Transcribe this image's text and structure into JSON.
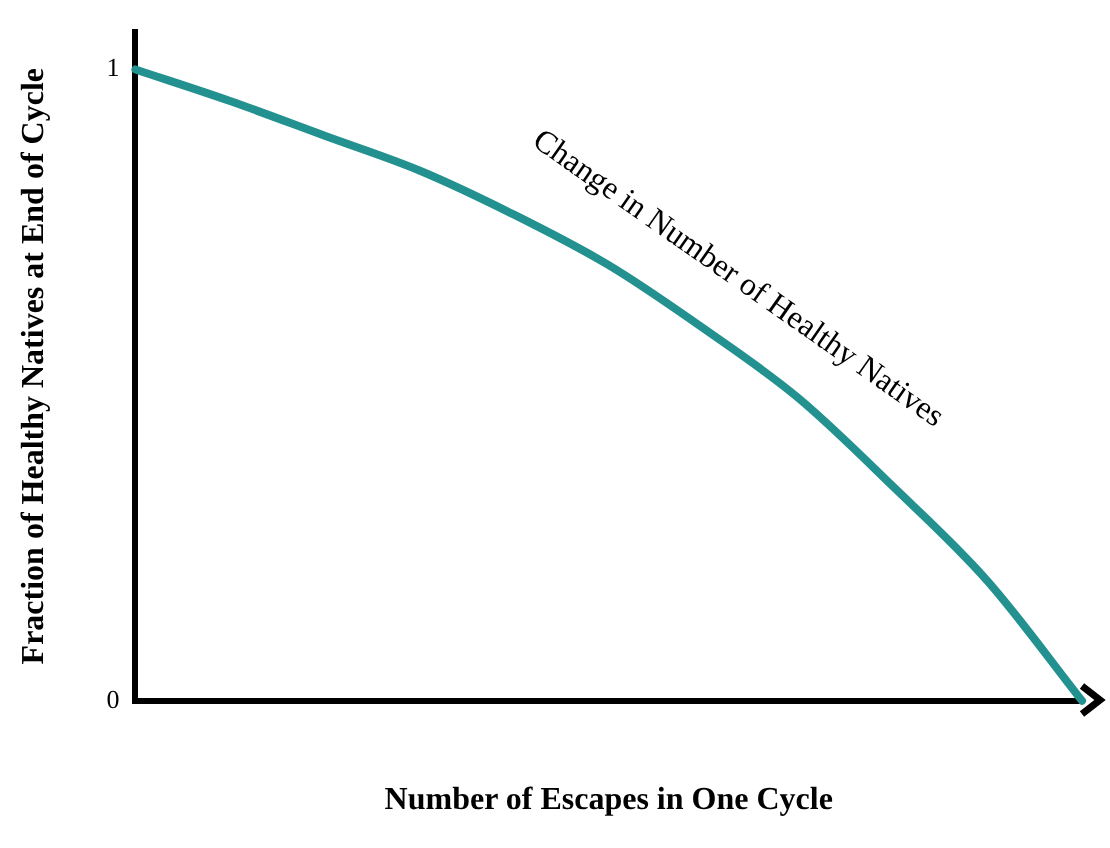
{
  "chart_data": {
    "type": "line",
    "xlabel": "Number of Escapes in One Cycle",
    "ylabel": "Fraction of Healthy Natives at End of Cycle",
    "categories": [
      null,
      null,
      null,
      null,
      null,
      null,
      null,
      null,
      null,
      null,
      null
    ],
    "series": [
      {
        "name": "Change in Number of Healthy Natives",
        "color": "#23918f",
        "values": [
          1,
          0.95,
          0.895,
          0.84,
          0.77,
          0.69,
          0.59,
          0.48,
          0.34,
          0.19,
          0
        ]
      }
    ],
    "ylim": [
      0,
      1.06
    ],
    "yticks": [
      0,
      1
    ],
    "grid": false,
    "legend": false,
    "marker": "none",
    "line_style": "solid"
  }
}
